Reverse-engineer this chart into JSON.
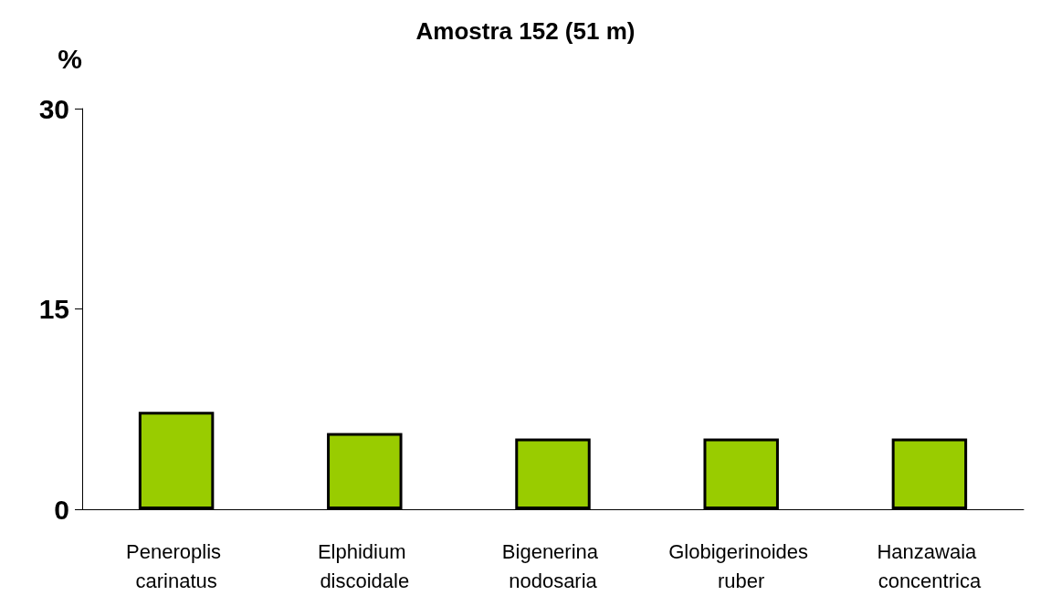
{
  "chart_data": {
    "type": "bar",
    "title": "Amostra 152 (51 m)",
    "ylabel": "%",
    "categories": [
      "Peneroplis carinatus",
      "Elphidium discoidale",
      "Bigenerina nodosaria",
      "Globigerinoides ruber",
      "Hanzawaia concentrica"
    ],
    "values": [
      7.3,
      5.7,
      5.3,
      5.3,
      5.3
    ],
    "color": "#99cc00",
    "ylim": [
      0,
      30
    ],
    "yticks": [
      0,
      15,
      30
    ],
    "grid": false
  }
}
